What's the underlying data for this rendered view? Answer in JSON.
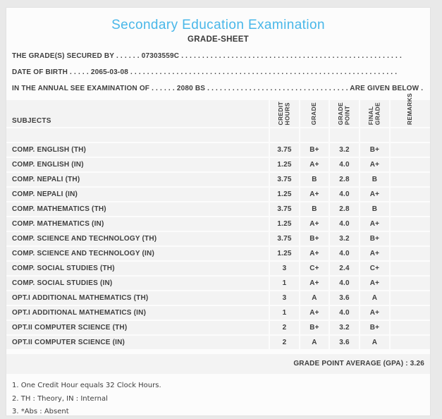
{
  "colors": {
    "accent": "#49b7e9"
  },
  "header": {
    "title": "Secondary Education Examination",
    "subtitle": "GRADE-SHEET"
  },
  "info_lines": [
    "THE GRADE(S) SECURED BY . . . . . . 07303559C . . . . . . . . . . . . . . . . . . . . . . . . . . . . . . . . . . . . . . . . . . . . . . . . . . . . .",
    "DATE OF BIRTH . . . . . 2065-03-08 . . . . . . . . . . . . . . . . . . . . . . . . . . . . . . . . . . . . . . . . . . . . . . . . . . . . . . . . . . . . . . . .",
    "IN THE ANNUAL SEE EXAMINATION OF . . . . . . 2080 BS . . . . . . . . . . . . . . . . . . . . . . . . . . . . . . . . . . ARE GIVEN BELOW . . ."
  ],
  "table": {
    "columns": [
      "SUBJECTS",
      "CREDIT\nHOURS",
      "GRADE",
      "GRADE\nPOINT",
      "FINAL\nGRADE",
      "REMARKS"
    ],
    "rows": [
      {
        "subject": "COMP. ENGLISH (TH)",
        "credit": "3.75",
        "grade": "B+",
        "point": "3.2",
        "final": "B+",
        "remarks": ""
      },
      {
        "subject": "COMP. ENGLISH (IN)",
        "credit": "1.25",
        "grade": "A+",
        "point": "4.0",
        "final": "A+",
        "remarks": ""
      },
      {
        "subject": "COMP. NEPALI (TH)",
        "credit": "3.75",
        "grade": "B",
        "point": "2.8",
        "final": "B",
        "remarks": ""
      },
      {
        "subject": "COMP. NEPALI (IN)",
        "credit": "1.25",
        "grade": "A+",
        "point": "4.0",
        "final": "A+",
        "remarks": ""
      },
      {
        "subject": "COMP. MATHEMATICS (TH)",
        "credit": "3.75",
        "grade": "B",
        "point": "2.8",
        "final": "B",
        "remarks": ""
      },
      {
        "subject": "COMP. MATHEMATICS (IN)",
        "credit": "1.25",
        "grade": "A+",
        "point": "4.0",
        "final": "A+",
        "remarks": ""
      },
      {
        "subject": "COMP. SCIENCE AND TECHNOLOGY (TH)",
        "credit": "3.75",
        "grade": "B+",
        "point": "3.2",
        "final": "B+",
        "remarks": ""
      },
      {
        "subject": "COMP. SCIENCE AND TECHNOLOGY (IN)",
        "credit": "1.25",
        "grade": "A+",
        "point": "4.0",
        "final": "A+",
        "remarks": ""
      },
      {
        "subject": "COMP. SOCIAL STUDIES (TH)",
        "credit": "3",
        "grade": "C+",
        "point": "2.4",
        "final": "C+",
        "remarks": ""
      },
      {
        "subject": "COMP. SOCIAL STUDIES (IN)",
        "credit": "1",
        "grade": "A+",
        "point": "4.0",
        "final": "A+",
        "remarks": ""
      },
      {
        "subject": "OPT.I ADDITIONAL MATHEMATICS (TH)",
        "credit": "3",
        "grade": "A",
        "point": "3.6",
        "final": "A",
        "remarks": ""
      },
      {
        "subject": "OPT.I ADDITIONAL MATHEMATICS (IN)",
        "credit": "1",
        "grade": "A+",
        "point": "4.0",
        "final": "A+",
        "remarks": ""
      },
      {
        "subject": "OPT.II COMPUTER SCIENCE (TH)",
        "credit": "2",
        "grade": "B+",
        "point": "3.2",
        "final": "B+",
        "remarks": ""
      },
      {
        "subject": "OPT.II COMPUTER SCIENCE (IN)",
        "credit": "2",
        "grade": "A",
        "point": "3.6",
        "final": "A",
        "remarks": ""
      }
    ],
    "gpa_label": "GRADE POINT AVERAGE (GPA) : 3.26"
  },
  "footnotes": [
    "1. One Credit Hour equals 32 Clock Hours.",
    "2. TH : Theory, IN : Internal",
    "3. *Abs : Absent"
  ]
}
